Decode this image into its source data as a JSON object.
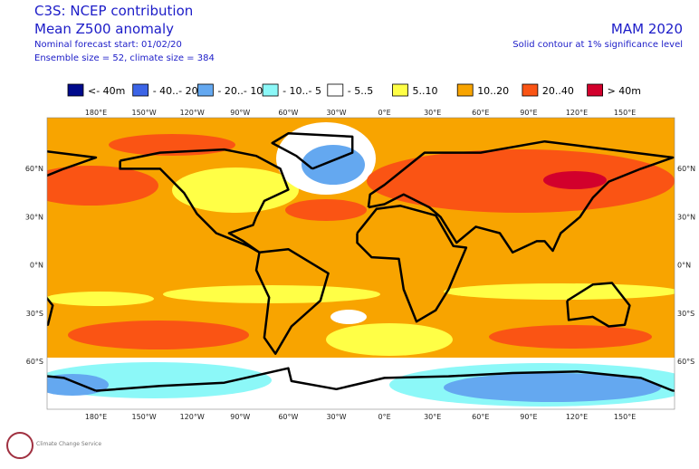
{
  "header": {
    "left_lines": [
      "C3S: NCEP contribution",
      "Mean Z500 anomaly",
      "Nominal forecast start: 01/02/20",
      "Ensemble size = 52, climate size = 384"
    ],
    "right_title": "MAM 2020",
    "right_subtitle": "Solid contour at 1% significance level"
  },
  "legend": {
    "items": [
      {
        "label": "<- 40m",
        "color": "#000a8c"
      },
      {
        "label": "- 40..- 20",
        "color": "#3c64e6"
      },
      {
        "label": "- 20..- 10",
        "color": "#64a8f0"
      },
      {
        "label": "- 10..- 5",
        "color": "#8cf8f8"
      },
      {
        "label": "- 5..5",
        "color": "#ffffff"
      },
      {
        "label": "5..10",
        "color": "#ffff46"
      },
      {
        "label": "10..20",
        "color": "#f8a400"
      },
      {
        "label": "20..40",
        "color": "#fa5414"
      },
      {
        "label": "> 40m",
        "color": "#d2002c"
      }
    ]
  },
  "map": {
    "lon_labels": [
      "180°E",
      "150°W",
      "120°W",
      "90°W",
      "60°W",
      "30°W",
      "0°E",
      "30°E",
      "60°E",
      "90°E",
      "120°E",
      "150°E"
    ],
    "lat_labels": [
      "60°N",
      "30°N",
      "0°N",
      "30°S",
      "60°S"
    ]
  },
  "logo": {
    "text": "Climate Change Service"
  }
}
